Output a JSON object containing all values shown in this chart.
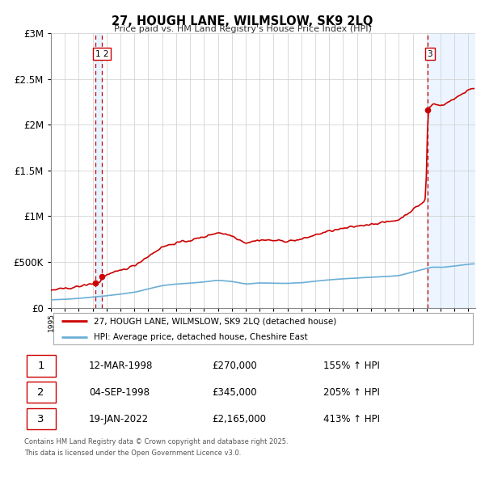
{
  "title": "27, HOUGH LANE, WILMSLOW, SK9 2LQ",
  "subtitle": "Price paid vs. HM Land Registry's House Price Index (HPI)",
  "legend_line1": "27, HOUGH LANE, WILMSLOW, SK9 2LQ (detached house)",
  "legend_line2": "HPI: Average price, detached house, Cheshire East",
  "footnote1": "Contains HM Land Registry data © Crown copyright and database right 2025.",
  "footnote2": "This data is licensed under the Open Government Licence v3.0.",
  "sales": [
    {
      "date_num": 1998.19,
      "price": 270000,
      "label": "1",
      "date_str": "12-MAR-1998",
      "pct": "155% ↑ HPI"
    },
    {
      "date_num": 1998.67,
      "price": 345000,
      "label": "2",
      "date_str": "04-SEP-1998",
      "pct": "205% ↑ HPI"
    },
    {
      "date_num": 2022.05,
      "price": 2165000,
      "label": "3",
      "date_str": "19-JAN-2022",
      "pct": "413% ↑ HPI"
    }
  ],
  "hpi_color": "#6baed6",
  "price_color": "#cc0000",
  "vline_color": "#cc0000",
  "bg_shaded_color": "#ddeeff",
  "grid_color": "#cccccc",
  "ylim": [
    0,
    3000000
  ],
  "xlim": [
    1995.0,
    2025.5
  ],
  "table_rows": [
    {
      "num": "1",
      "date": "12-MAR-1998",
      "price": "£270,000",
      "pct": "155% ↑ HPI"
    },
    {
      "num": "2",
      "date": "04-SEP-1998",
      "price": "£345,000",
      "pct": "205% ↑ HPI"
    },
    {
      "num": "3",
      "date": "19-JAN-2022",
      "price": "£2,165,000",
      "pct": "413% ↑ HPI"
    }
  ]
}
